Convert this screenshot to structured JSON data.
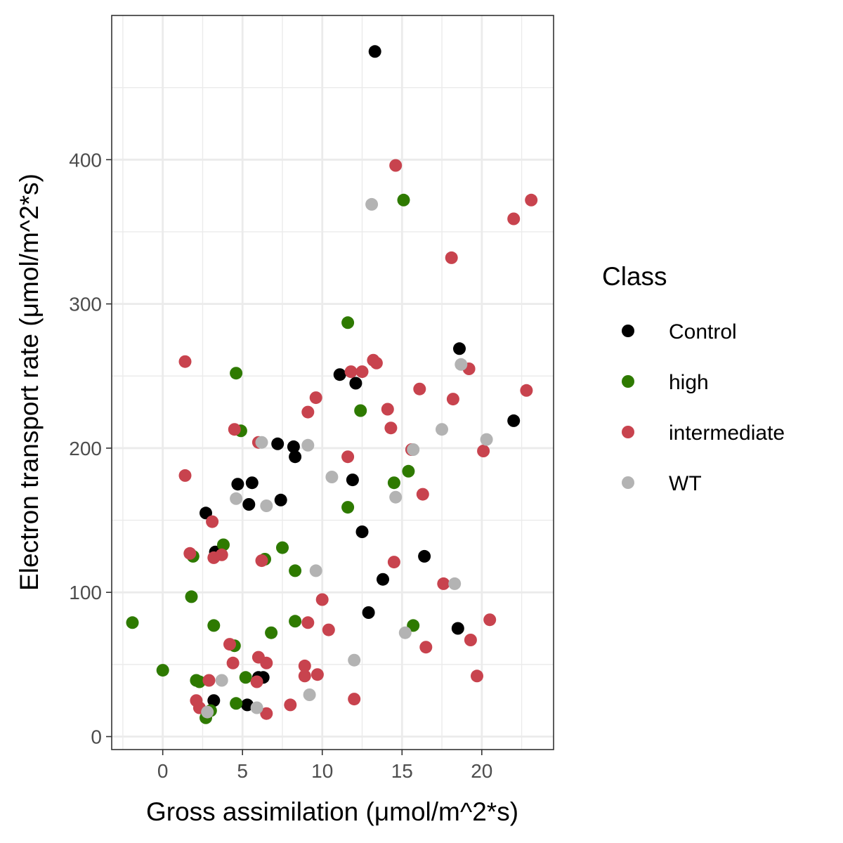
{
  "chart_data": {
    "type": "scatter",
    "xlabel": "Gross assimilation (μmol/m^2*s)",
    "ylabel": "Electron transport rate (μmol/m^2*s)",
    "xlim": [
      -3.2,
      24.5
    ],
    "ylim": [
      -9,
      500
    ],
    "x_ticks": [
      0,
      5,
      10,
      15,
      20
    ],
    "y_ticks": [
      0,
      100,
      200,
      300,
      400
    ],
    "x_tick_labels": [
      "0",
      "5",
      "10",
      "15",
      "20"
    ],
    "y_tick_labels": [
      "0",
      "100",
      "200",
      "300",
      "400"
    ],
    "grid": true,
    "legend": {
      "title": "Class",
      "position": "right"
    },
    "series": [
      {
        "name": "Control",
        "color": "#000000",
        "points": [
          [
            13.3,
            475
          ],
          [
            18.6,
            269
          ],
          [
            22.0,
            219
          ],
          [
            11.1,
            251
          ],
          [
            12.1,
            245
          ],
          [
            7.2,
            203
          ],
          [
            8.2,
            201
          ],
          [
            8.3,
            194
          ],
          [
            4.7,
            175
          ],
          [
            5.6,
            176
          ],
          [
            5.4,
            161
          ],
          [
            7.4,
            164
          ],
          [
            11.9,
            178
          ],
          [
            2.7,
            155
          ],
          [
            3.3,
            128
          ],
          [
            12.5,
            142
          ],
          [
            16.4,
            125
          ],
          [
            13.8,
            109
          ],
          [
            12.9,
            86
          ],
          [
            18.5,
            75
          ],
          [
            6.0,
            41
          ],
          [
            6.3,
            41
          ],
          [
            3.2,
            25
          ],
          [
            5.3,
            22
          ]
        ]
      },
      {
        "name": "high",
        "color": "#2e7a00",
        "points": [
          [
            15.1,
            372
          ],
          [
            11.6,
            287
          ],
          [
            4.6,
            252
          ],
          [
            4.9,
            212
          ],
          [
            12.4,
            226
          ],
          [
            15.4,
            184
          ],
          [
            14.5,
            176
          ],
          [
            11.6,
            159
          ],
          [
            3.8,
            133
          ],
          [
            1.9,
            125
          ],
          [
            6.4,
            123
          ],
          [
            7.5,
            131
          ],
          [
            8.3,
            115
          ],
          [
            1.8,
            97
          ],
          [
            -1.9,
            79
          ],
          [
            3.2,
            77
          ],
          [
            8.3,
            80
          ],
          [
            6.8,
            72
          ],
          [
            15.7,
            77
          ],
          [
            4.5,
            63
          ],
          [
            0.0,
            46
          ],
          [
            2.1,
            39
          ],
          [
            2.3,
            38
          ],
          [
            5.2,
            41
          ],
          [
            4.6,
            23
          ],
          [
            3.0,
            18
          ],
          [
            2.7,
            13
          ]
        ]
      },
      {
        "name": "intermediate",
        "color": "#c8434e",
        "points": [
          [
            14.6,
            396
          ],
          [
            23.1,
            372
          ],
          [
            22.0,
            359
          ],
          [
            18.1,
            332
          ],
          [
            13.2,
            261
          ],
          [
            13.4,
            259
          ],
          [
            11.8,
            253
          ],
          [
            12.5,
            253
          ],
          [
            19.2,
            255
          ],
          [
            16.1,
            241
          ],
          [
            22.8,
            240
          ],
          [
            1.4,
            260
          ],
          [
            9.6,
            235
          ],
          [
            9.1,
            225
          ],
          [
            14.1,
            227
          ],
          [
            18.2,
            234
          ],
          [
            4.5,
            213
          ],
          [
            14.3,
            214
          ],
          [
            6.0,
            204
          ],
          [
            15.6,
            199
          ],
          [
            20.1,
            198
          ],
          [
            11.6,
            194
          ],
          [
            1.4,
            181
          ],
          [
            16.3,
            168
          ],
          [
            3.1,
            149
          ],
          [
            1.7,
            127
          ],
          [
            3.2,
            124
          ],
          [
            3.7,
            126
          ],
          [
            6.2,
            122
          ],
          [
            14.5,
            121
          ],
          [
            17.6,
            106
          ],
          [
            10.0,
            95
          ],
          [
            20.5,
            81
          ],
          [
            9.1,
            79
          ],
          [
            10.4,
            74
          ],
          [
            19.3,
            67
          ],
          [
            4.2,
            64
          ],
          [
            16.5,
            62
          ],
          [
            4.4,
            51
          ],
          [
            6.0,
            55
          ],
          [
            6.5,
            51
          ],
          [
            8.9,
            49
          ],
          [
            8.9,
            42
          ],
          [
            9.7,
            43
          ],
          [
            19.7,
            42
          ],
          [
            2.9,
            39
          ],
          [
            5.9,
            38
          ],
          [
            2.1,
            25
          ],
          [
            2.3,
            20
          ],
          [
            8.0,
            22
          ],
          [
            12.0,
            26
          ],
          [
            6.5,
            16
          ]
        ]
      },
      {
        "name": "WT",
        "color": "#b3b3b3",
        "points": [
          [
            13.1,
            369
          ],
          [
            18.7,
            258
          ],
          [
            6.2,
            204
          ],
          [
            9.1,
            202
          ],
          [
            20.3,
            206
          ],
          [
            17.5,
            213
          ],
          [
            15.7,
            199
          ],
          [
            10.6,
            180
          ],
          [
            4.6,
            165
          ],
          [
            6.5,
            160
          ],
          [
            14.6,
            166
          ],
          [
            9.6,
            115
          ],
          [
            18.3,
            106
          ],
          [
            15.2,
            72
          ],
          [
            12.0,
            53
          ],
          [
            3.7,
            39
          ],
          [
            9.2,
            29
          ],
          [
            5.9,
            20
          ],
          [
            2.8,
            17
          ]
        ]
      }
    ]
  }
}
